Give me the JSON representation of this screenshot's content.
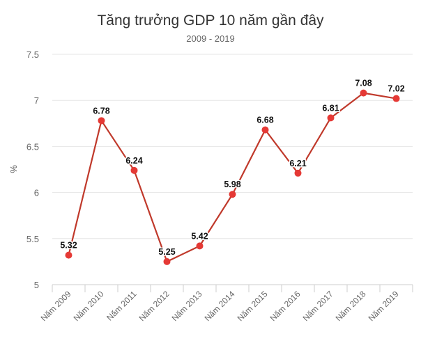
{
  "chart_data": {
    "type": "line",
    "title": "Tăng trưởng GDP 10 năm gần đây",
    "subtitle": "2009 - 2019",
    "xlabel": "",
    "ylabel": "%",
    "categories": [
      "Năm 2009",
      "Năm 2010",
      "Năm 2011",
      "Năm 2012",
      "Năm 2013",
      "Năm 2014",
      "Năm 2015",
      "Năm 2016",
      "Năm 2017",
      "Năm 2018",
      "Năm 2019"
    ],
    "values": [
      5.32,
      6.78,
      6.24,
      5.25,
      5.42,
      5.98,
      6.68,
      6.21,
      6.81,
      7.08,
      7.02
    ],
    "data_labels": [
      "5.32",
      "6.78",
      "6.24",
      "5.25",
      "5.42",
      "5.98",
      "6.68",
      "6.21",
      "6.81",
      "7.08",
      "7.02"
    ],
    "ylim": [
      5,
      7.5
    ],
    "yticks": [
      "5",
      "5.5",
      "6",
      "6.5",
      "7",
      "7.5"
    ],
    "grid": true,
    "legend": "none",
    "colors": {
      "line": "#c0392b",
      "marker": "#e53935",
      "grid": "#e6e6e6"
    }
  }
}
